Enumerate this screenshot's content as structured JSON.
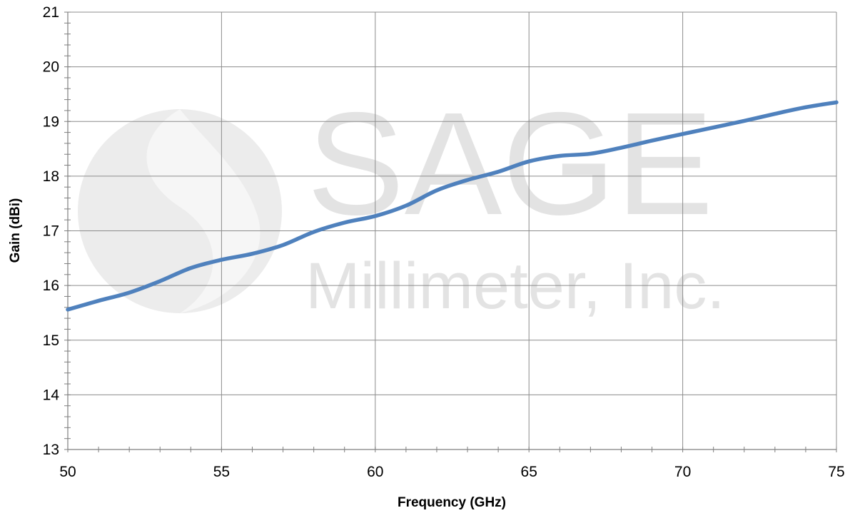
{
  "chart_data": {
    "type": "line",
    "title": "",
    "xlabel": "Frequency (GHz)",
    "ylabel": "Gain (dBi)",
    "xlim": [
      50,
      75
    ],
    "ylim": [
      13,
      21
    ],
    "x_ticks": [
      50,
      55,
      60,
      65,
      70,
      75
    ],
    "y_ticks": [
      13,
      14,
      15,
      16,
      17,
      18,
      19,
      20,
      21
    ],
    "x_minor_step": 1,
    "y_minor_step": 0.2,
    "grid": true,
    "legend": "none",
    "series": [
      {
        "color": "#4f81bd",
        "x": [
          50,
          51,
          52,
          53,
          54,
          55,
          56,
          57,
          58,
          59,
          60,
          61,
          62,
          63,
          64,
          65,
          66,
          67,
          68,
          69,
          70,
          71,
          72,
          73,
          74,
          75
        ],
        "y": [
          15.56,
          15.72,
          15.87,
          16.08,
          16.32,
          16.47,
          16.58,
          16.74,
          16.98,
          17.15,
          17.27,
          17.46,
          17.74,
          17.93,
          18.08,
          18.27,
          18.37,
          18.41,
          18.52,
          18.65,
          18.77,
          18.89,
          19.01,
          19.14,
          19.26,
          19.35
        ]
      }
    ]
  },
  "watermark": {
    "line1": "SAGE",
    "line2": "Millimeter, Inc."
  }
}
